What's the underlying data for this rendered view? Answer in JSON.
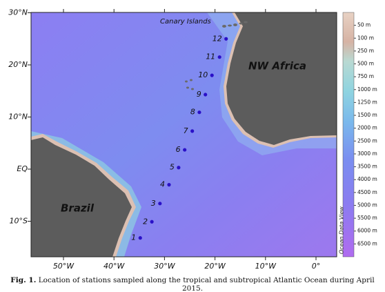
{
  "map": {
    "lon_ticks": [
      {
        "value": -50,
        "label": "50°W"
      },
      {
        "value": -40,
        "label": "40°W"
      },
      {
        "value": -30,
        "label": "30°W"
      },
      {
        "value": -20,
        "label": "20°W"
      },
      {
        "value": -10,
        "label": "10°W"
      },
      {
        "value": 0,
        "label": "0°"
      }
    ],
    "lat_ticks": [
      {
        "value": 30,
        "label": "30°N"
      },
      {
        "value": 20,
        "label": "20°N"
      },
      {
        "value": 10,
        "label": "10°N"
      },
      {
        "value": 0,
        "label": "EQ"
      },
      {
        "value": -10,
        "label": "10°S"
      }
    ],
    "stations": [
      {
        "label": "1",
        "lon": -34.8,
        "lat": -13.2
      },
      {
        "label": "2",
        "lon": -32.5,
        "lat": -10.1
      },
      {
        "label": "3",
        "lon": -30.9,
        "lat": -6.6
      },
      {
        "label": "4",
        "lon": -29.1,
        "lat": -3.0
      },
      {
        "label": "5",
        "lon": -27.2,
        "lat": 0.3
      },
      {
        "label": "6",
        "lon": -26.0,
        "lat": 3.7
      },
      {
        "label": "7",
        "lon": -24.5,
        "lat": 7.3
      },
      {
        "label": "8",
        "lon": -23.1,
        "lat": 10.9
      },
      {
        "label": "9",
        "lon": -21.9,
        "lat": 14.3
      },
      {
        "label": "10",
        "lon": -20.6,
        "lat": 18.0
      },
      {
        "label": "11",
        "lon": -19.1,
        "lat": 21.5
      },
      {
        "label": "12",
        "lon": -17.8,
        "lat": 25.0
      }
    ],
    "region_labels": {
      "africa": "NW Africa",
      "brazil": "Brazil",
      "canary": "Canary Islands"
    },
    "watermark": "Ocean Data View",
    "depth_legend": [
      {
        "value": 50,
        "label": "50 m"
      },
      {
        "value": 100,
        "label": "100 m"
      },
      {
        "value": 250,
        "label": "250 m"
      },
      {
        "value": 500,
        "label": "500 m"
      },
      {
        "value": 750,
        "label": "750 m"
      },
      {
        "value": 1000,
        "label": "1000 m"
      },
      {
        "value": 1250,
        "label": "1250 m"
      },
      {
        "value": 1500,
        "label": "1500 m"
      },
      {
        "value": 2000,
        "label": "2000 m"
      },
      {
        "value": 2500,
        "label": "2500 m"
      },
      {
        "value": 3000,
        "label": "3000 m"
      },
      {
        "value": 3500,
        "label": "3500 m"
      },
      {
        "value": 4000,
        "label": "4000 m"
      },
      {
        "value": 4500,
        "label": "4500 m"
      },
      {
        "value": 5000,
        "label": "5000 m"
      },
      {
        "value": 5500,
        "label": "5500 m"
      },
      {
        "value": 6000,
        "label": "6000 m"
      },
      {
        "value": 6500,
        "label": "6500 m"
      }
    ]
  },
  "caption": {
    "label": "Fig. 1.",
    "text": "Location of stations sampled along the tropical and subtropical Atlantic Ocean during April 2015."
  }
}
